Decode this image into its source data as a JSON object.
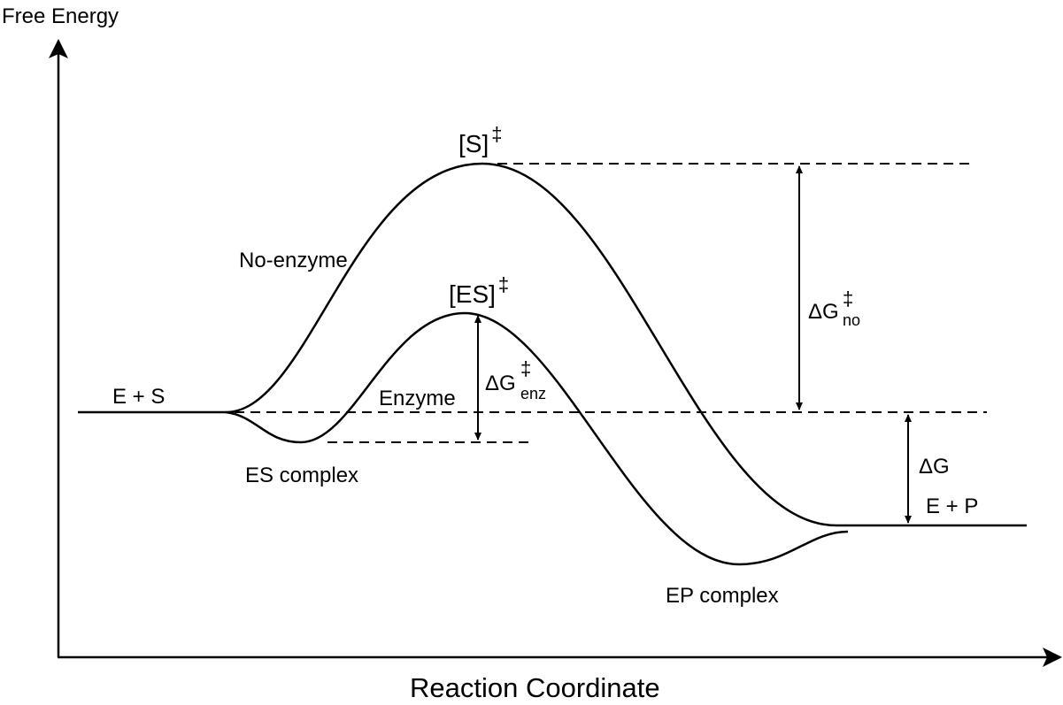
{
  "axes": {
    "y_label": "Free Energy",
    "x_label": "Reaction Coordinate"
  },
  "curves": {
    "no_enzyme_label": "No-enzyme",
    "enzyme_label": "Enzyme"
  },
  "states": {
    "reactants": "E + S",
    "products": "E + P",
    "es_complex": "ES complex",
    "ep_complex": "EP complex",
    "uncatalyzed_ts": {
      "base": "[S]",
      "sup": "‡"
    },
    "catalyzed_ts": {
      "base": "[ES]",
      "sup": "‡"
    }
  },
  "energies": {
    "dg_no": {
      "base": "ΔG",
      "sup": "‡",
      "sub": "no"
    },
    "dg_enz": {
      "base": "ΔG",
      "sup": "‡",
      "sub": "enz"
    },
    "dg": "ΔG"
  },
  "colors": {
    "ink": "#000000",
    "background": "#ffffff"
  }
}
